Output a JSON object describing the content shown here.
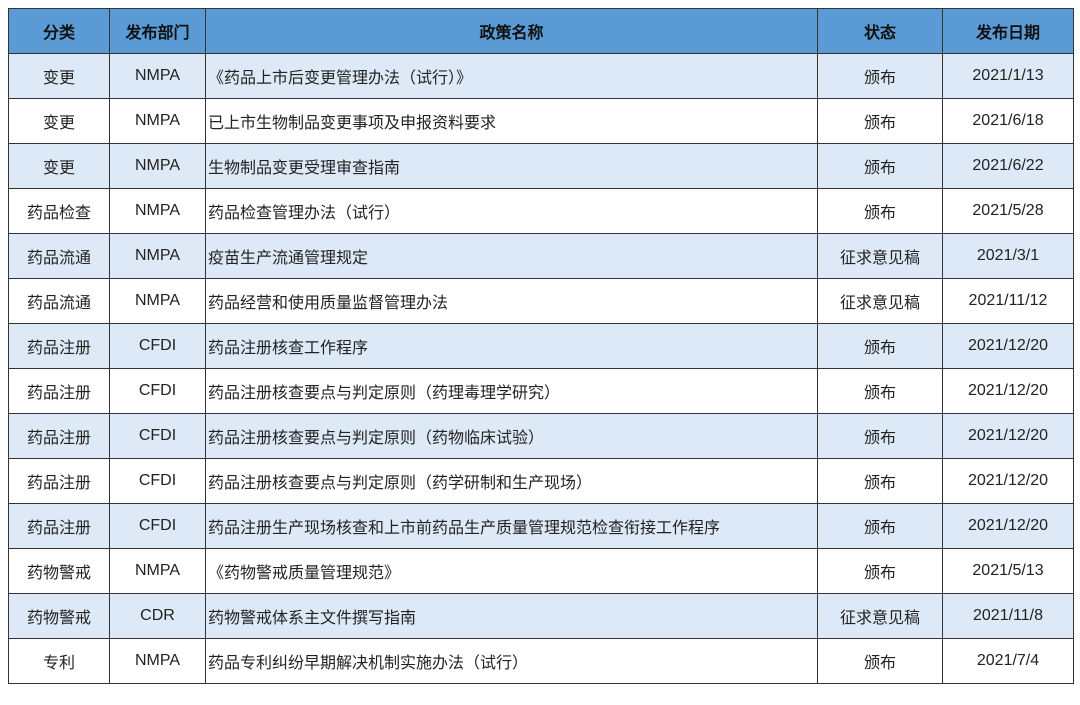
{
  "table": {
    "headers": [
      "分类",
      "发布部门",
      "政策名称",
      "状态",
      "发布日期"
    ],
    "header_color": "#5b9bd5",
    "alt_row_color": "#dde9f6",
    "rows": [
      [
        "变更",
        "NMPA",
        "《药品上市后变更管理办法（试行）》",
        "颁布",
        "2021/1/13"
      ],
      [
        "变更",
        "NMPA",
        "已上市生物制品变更事项及申报资料要求",
        "颁布",
        "2021/6/18"
      ],
      [
        "变更",
        "NMPA",
        "生物制品变更受理审查指南",
        "颁布",
        "2021/6/22"
      ],
      [
        "药品检查",
        "NMPA",
        "药品检查管理办法（试行）",
        "颁布",
        "2021/5/28"
      ],
      [
        "药品流通",
        "NMPA",
        "疫苗生产流通管理规定",
        "征求意见稿",
        "2021/3/1"
      ],
      [
        "药品流通",
        "NMPA",
        "药品经营和使用质量监督管理办法",
        "征求意见稿",
        "2021/11/12"
      ],
      [
        "药品注册",
        "CFDI",
        "药品注册核查工作程序",
        "颁布",
        "2021/12/20"
      ],
      [
        "药品注册",
        "CFDI",
        "药品注册核查要点与判定原则（药理毒理学研究）",
        "颁布",
        "2021/12/20"
      ],
      [
        "药品注册",
        "CFDI",
        "药品注册核查要点与判定原则（药物临床试验）",
        "颁布",
        "2021/12/20"
      ],
      [
        "药品注册",
        "CFDI",
        "药品注册核查要点与判定原则（药学研制和生产现场）",
        "颁布",
        "2021/12/20"
      ],
      [
        "药品注册",
        "CFDI",
        "药品注册生产现场核查和上市前药品生产质量管理规范检查衔接工作程序",
        "颁布",
        "2021/12/20"
      ],
      [
        "药物警戒",
        "NMPA",
        "《药物警戒质量管理规范》",
        "颁布",
        "2021/5/13"
      ],
      [
        "药物警戒",
        "CDR",
        "药物警戒体系主文件撰写指南",
        "征求意见稿",
        "2021/11/8"
      ],
      [
        "专利",
        "NMPA",
        "药品专利纠纷早期解决机制实施办法（试行）",
        "颁布",
        "2021/7/4"
      ]
    ]
  }
}
